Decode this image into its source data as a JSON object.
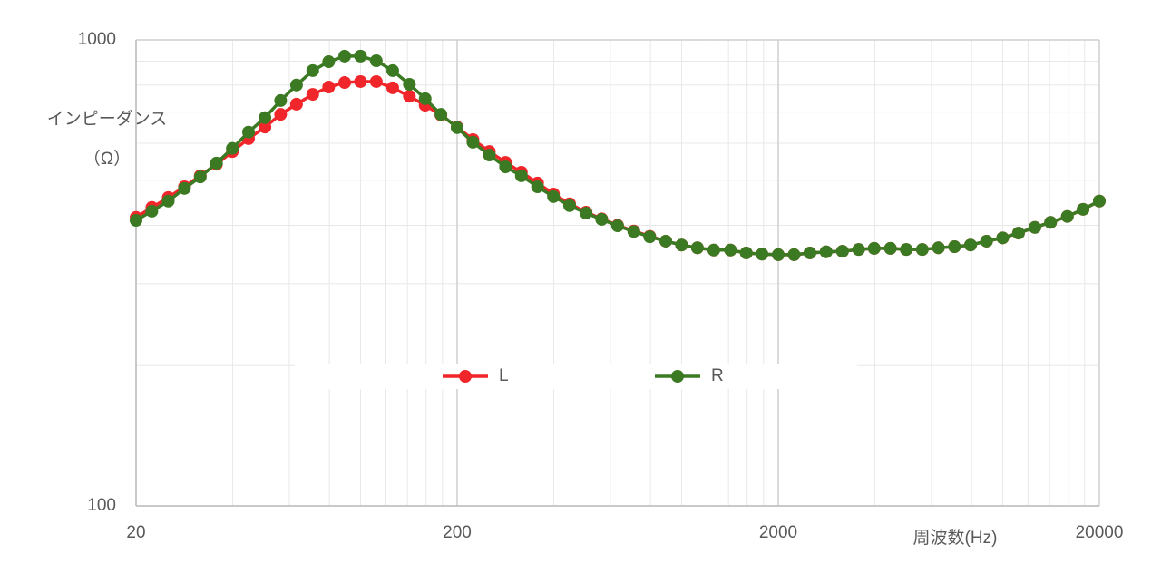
{
  "chart_data": {
    "type": "line",
    "ylabel": [
      "インピーダンス",
      "（Ω）"
    ],
    "xlabel": "周波数(Hz)",
    "x": [
      20,
      22.4,
      25.2,
      28.3,
      31.7,
      35.6,
      39.9,
      44.8,
      50.4,
      56.4,
      63.2,
      71.0,
      79.6,
      89.3,
      100,
      112,
      126,
      142,
      159,
      178,
      200,
      224,
      252,
      283,
      317,
      356,
      399,
      448,
      504,
      564,
      632,
      710,
      796,
      893,
      1000,
      1120,
      1260,
      1420,
      1590,
      1780,
      2000,
      2240,
      2510,
      2820,
      3170,
      3560,
      3980,
      4470,
      5010,
      5620,
      6310,
      7080,
      7940,
      8910,
      10000,
      11200,
      12600,
      14100,
      15900,
      17800,
      20000
    ],
    "series": [
      {
        "name": "L",
        "color": "#f0262b",
        "values": [
          416,
          437,
          459,
          484,
          511,
          541,
          576,
          614,
          650,
          692,
          728,
          764,
          792,
          810,
          814,
          814,
          789,
          757,
          724,
          690,
          650,
          611,
          576,
          546,
          520,
          493,
          467,
          445,
          427,
          413,
          400,
          389,
          379,
          370,
          363,
          358,
          354,
          354,
          349,
          347,
          346,
          346,
          349,
          351,
          352,
          355,
          357,
          357,
          355,
          355,
          358,
          360,
          363,
          370,
          376,
          385,
          396,
          406,
          418,
          433,
          451
        ]
      },
      {
        "name": "R",
        "color": "#3b7a22",
        "values": [
          410,
          429,
          451,
          480,
          508,
          544,
          585,
          634,
          681,
          741,
          800,
          859,
          898,
          923,
          923,
          902,
          859,
          803,
          748,
          692,
          648,
          603,
          566,
          534,
          511,
          484,
          461,
          441,
          425,
          412,
          399,
          388,
          378,
          370,
          363,
          358,
          354,
          354,
          349,
          347,
          346,
          346,
          349,
          351,
          352,
          355,
          357,
          357,
          355,
          355,
          358,
          360,
          363,
          370,
          376,
          385,
          396,
          406,
          418,
          433,
          451
        ]
      }
    ],
    "xlim": [
      20,
      20000
    ],
    "xticks": [
      20,
      200,
      2000,
      20000
    ],
    "xscale": "log",
    "ylim": [
      100,
      1000
    ],
    "yticks": [
      100,
      1000
    ],
    "yscale": "log",
    "grid": true,
    "minor_grid": true,
    "legend": "center"
  }
}
